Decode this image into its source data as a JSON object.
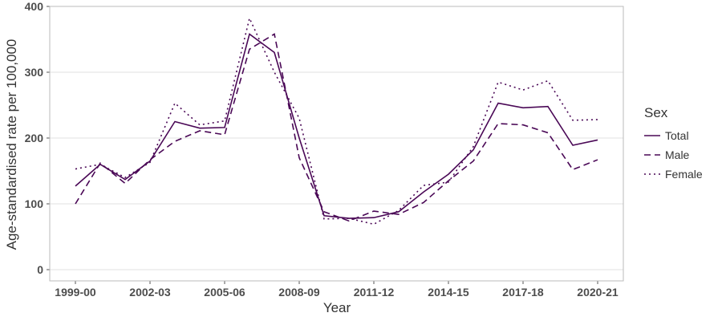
{
  "chart_data": {
    "type": "line",
    "x_label": "Year",
    "y_label": "Age-standardised rate per 100,000",
    "legend_title": "Sex",
    "legend_position": "right",
    "grid": true,
    "categories": [
      "1999-00",
      null,
      null,
      "2002-03",
      null,
      null,
      "2005-06",
      null,
      null,
      "2008-09",
      null,
      null,
      "2011-12",
      null,
      null,
      "2014-15",
      null,
      null,
      "2017-18",
      null,
      null,
      "2020-21"
    ],
    "ylim": [
      0,
      400
    ],
    "yticks": [
      0,
      100,
      200,
      300,
      400
    ],
    "series": [
      {
        "name": "Total",
        "color": "#4a0856",
        "linestyle": "solid",
        "values": [
          127,
          160,
          137,
          165,
          225,
          215,
          216,
          358,
          330,
          200,
          82,
          78,
          79,
          88,
          118,
          145,
          182,
          253,
          246,
          248,
          189,
          197
        ]
      },
      {
        "name": "Male",
        "color": "#4a0856",
        "linestyle": "dashed",
        "values": [
          100,
          162,
          131,
          167,
          195,
          211,
          205,
          335,
          358,
          170,
          88,
          74,
          89,
          84,
          102,
          135,
          165,
          222,
          220,
          208,
          152,
          167
        ]
      },
      {
        "name": "Female",
        "color": "#4a0856",
        "linestyle": "dotted",
        "values": [
          153,
          160,
          140,
          163,
          253,
          220,
          226,
          382,
          300,
          230,
          77,
          78,
          69,
          90,
          128,
          133,
          187,
          285,
          273,
          287,
          227,
          228
        ]
      }
    ]
  }
}
